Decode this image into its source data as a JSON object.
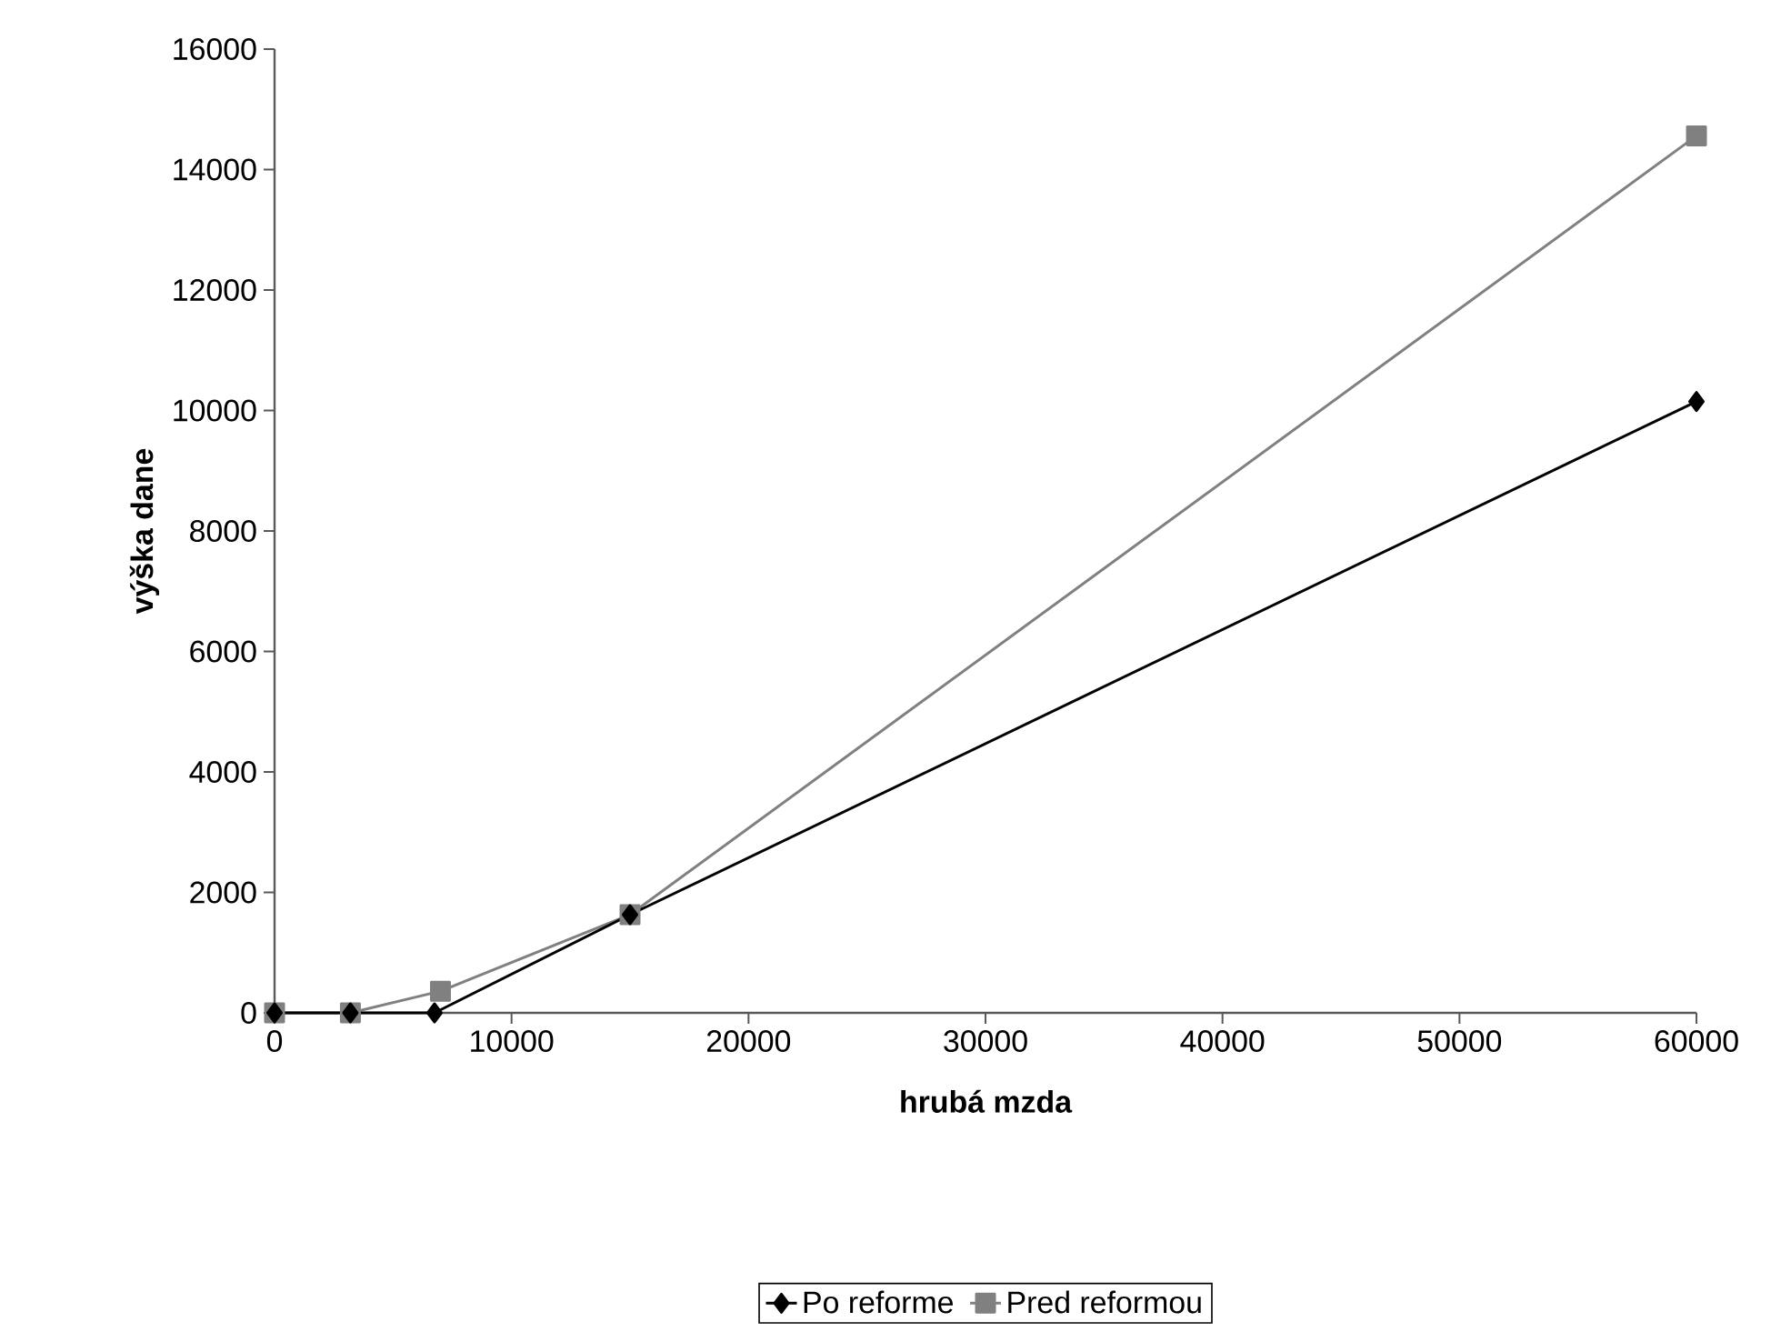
{
  "chart_data": {
    "type": "line",
    "xlabel": "hrubá mzda",
    "ylabel": "výška dane",
    "xlim": [
      0,
      60000
    ],
    "xticks": [
      0,
      10000,
      20000,
      30000,
      40000,
      50000,
      60000
    ],
    "ylim": [
      0,
      16000
    ],
    "yticks": [
      0,
      2000,
      4000,
      6000,
      8000,
      10000,
      12000,
      14000,
      16000
    ],
    "grid": false,
    "legend": "bottom",
    "line_style": "solid",
    "series": [
      {
        "name": "Po reforme",
        "color": "#000000",
        "marker": "diamond",
        "x": [
          0,
          3200,
          6750,
          15000,
          60000
        ],
        "values": [
          0,
          0,
          0,
          1630,
          10150
        ]
      },
      {
        "name": "Pred reformou",
        "color": "#808080",
        "marker": "square",
        "x": [
          0,
          3200,
          7000,
          15000,
          60000
        ],
        "values": [
          0,
          0,
          360,
          1630,
          14560
        ]
      }
    ]
  }
}
